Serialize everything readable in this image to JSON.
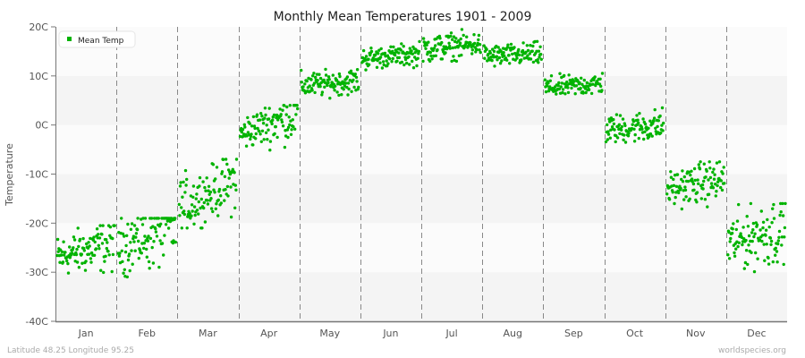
{
  "chart_data": {
    "type": "scatter",
    "title": "Monthly Mean Temperatures 1901 - 2009",
    "ylabel": "Temperature",
    "xlabel": "",
    "ylim": [
      -40,
      20
    ],
    "yticks": [
      {
        "value": 20,
        "label": "20C"
      },
      {
        "value": 10,
        "label": "10C"
      },
      {
        "value": 0,
        "label": "0C"
      },
      {
        "value": -10,
        "label": "-10C"
      },
      {
        "value": -20,
        "label": "-20C"
      },
      {
        "value": -30,
        "label": "-30C"
      },
      {
        "value": -40,
        "label": "-40C"
      }
    ],
    "categories": [
      "Jan",
      "Feb",
      "Mar",
      "Apr",
      "May",
      "Jun",
      "Jul",
      "Aug",
      "Sep",
      "Oct",
      "Nov",
      "Dec"
    ],
    "years": [
      1901,
      2009
    ],
    "grid": true,
    "legend_position": "top-left",
    "series": [
      {
        "name": "Mean Temp",
        "color": "#00b300",
        "monthly_estimates": [
          {
            "month": "Jan",
            "mean_start": -27,
            "mean_end": -24,
            "min": -32.5,
            "max": -20.5
          },
          {
            "month": "Feb",
            "mean_start": -25,
            "mean_end": -20,
            "min": -33,
            "max": -19
          },
          {
            "month": "Mar",
            "mean_start": -17,
            "mean_end": -11,
            "min": -21,
            "max": -7
          },
          {
            "month": "Apr",
            "mean_start": -2,
            "mean_end": 2.5,
            "min": -6,
            "max": 4
          },
          {
            "month": "May",
            "mean_start": 8,
            "mean_end": 9,
            "min": 5,
            "max": 12
          },
          {
            "month": "Jun",
            "mean_start": 13.5,
            "mean_end": 14.5,
            "min": 11,
            "max": 17
          },
          {
            "month": "Jul",
            "mean_start": 15.5,
            "mean_end": 16.5,
            "min": 13,
            "max": 20
          },
          {
            "month": "Aug",
            "mean_start": 14,
            "mean_end": 14.5,
            "min": 11,
            "max": 17.5
          },
          {
            "month": "Sep",
            "mean_start": 7.5,
            "mean_end": 8.5,
            "min": 5,
            "max": 11
          },
          {
            "month": "Oct",
            "mean_start": -1,
            "mean_end": 0,
            "min": -5,
            "max": 3.5
          },
          {
            "month": "Nov",
            "mean_start": -13,
            "mean_end": -11,
            "min": -18,
            "max": -7.5
          },
          {
            "month": "Dec",
            "mean_start": -24,
            "mean_end": -21,
            "min": -32,
            "max": -16
          }
        ]
      }
    ]
  },
  "legend": {
    "label": "Mean Temp"
  },
  "footer": {
    "location": "Latitude 48.25 Longitude 95.25",
    "source": "worldspecies.org"
  }
}
